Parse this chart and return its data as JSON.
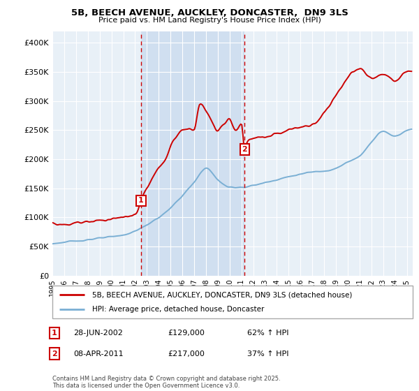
{
  "title": "5B, BEECH AVENUE, AUCKLEY, DONCASTER,  DN9 3LS",
  "subtitle": "Price paid vs. HM Land Registry's House Price Index (HPI)",
  "xlim": [
    1995,
    2025.5
  ],
  "ylim": [
    0,
    420000
  ],
  "yticks": [
    0,
    50000,
    100000,
    150000,
    200000,
    250000,
    300000,
    350000,
    400000
  ],
  "ytick_labels": [
    "£0",
    "£50K",
    "£100K",
    "£150K",
    "£200K",
    "£250K",
    "£300K",
    "£350K",
    "£400K"
  ],
  "purchase1_x": 2002.5,
  "purchase1_y": 129000,
  "purchase1_label": "1",
  "purchase2_x": 2011.27,
  "purchase2_y": 217000,
  "purchase2_label": "2",
  "red_line_color": "#cc0000",
  "blue_line_color": "#7aafd4",
  "vline_color": "#cc0000",
  "plot_bg": "#e8f0f7",
  "between_vline_bg": "#d0dff0",
  "legend_label_red": "5B, BEECH AVENUE, AUCKLEY, DONCASTER, DN9 3LS (detached house)",
  "legend_label_blue": "HPI: Average price, detached house, Doncaster",
  "annotation1_date": "28-JUN-2002",
  "annotation1_price": "£129,000",
  "annotation1_hpi": "62% ↑ HPI",
  "annotation2_date": "08-APR-2011",
  "annotation2_price": "£217,000",
  "annotation2_hpi": "37% ↑ HPI",
  "footer": "Contains HM Land Registry data © Crown copyright and database right 2025.\nThis data is licensed under the Open Government Licence v3.0."
}
